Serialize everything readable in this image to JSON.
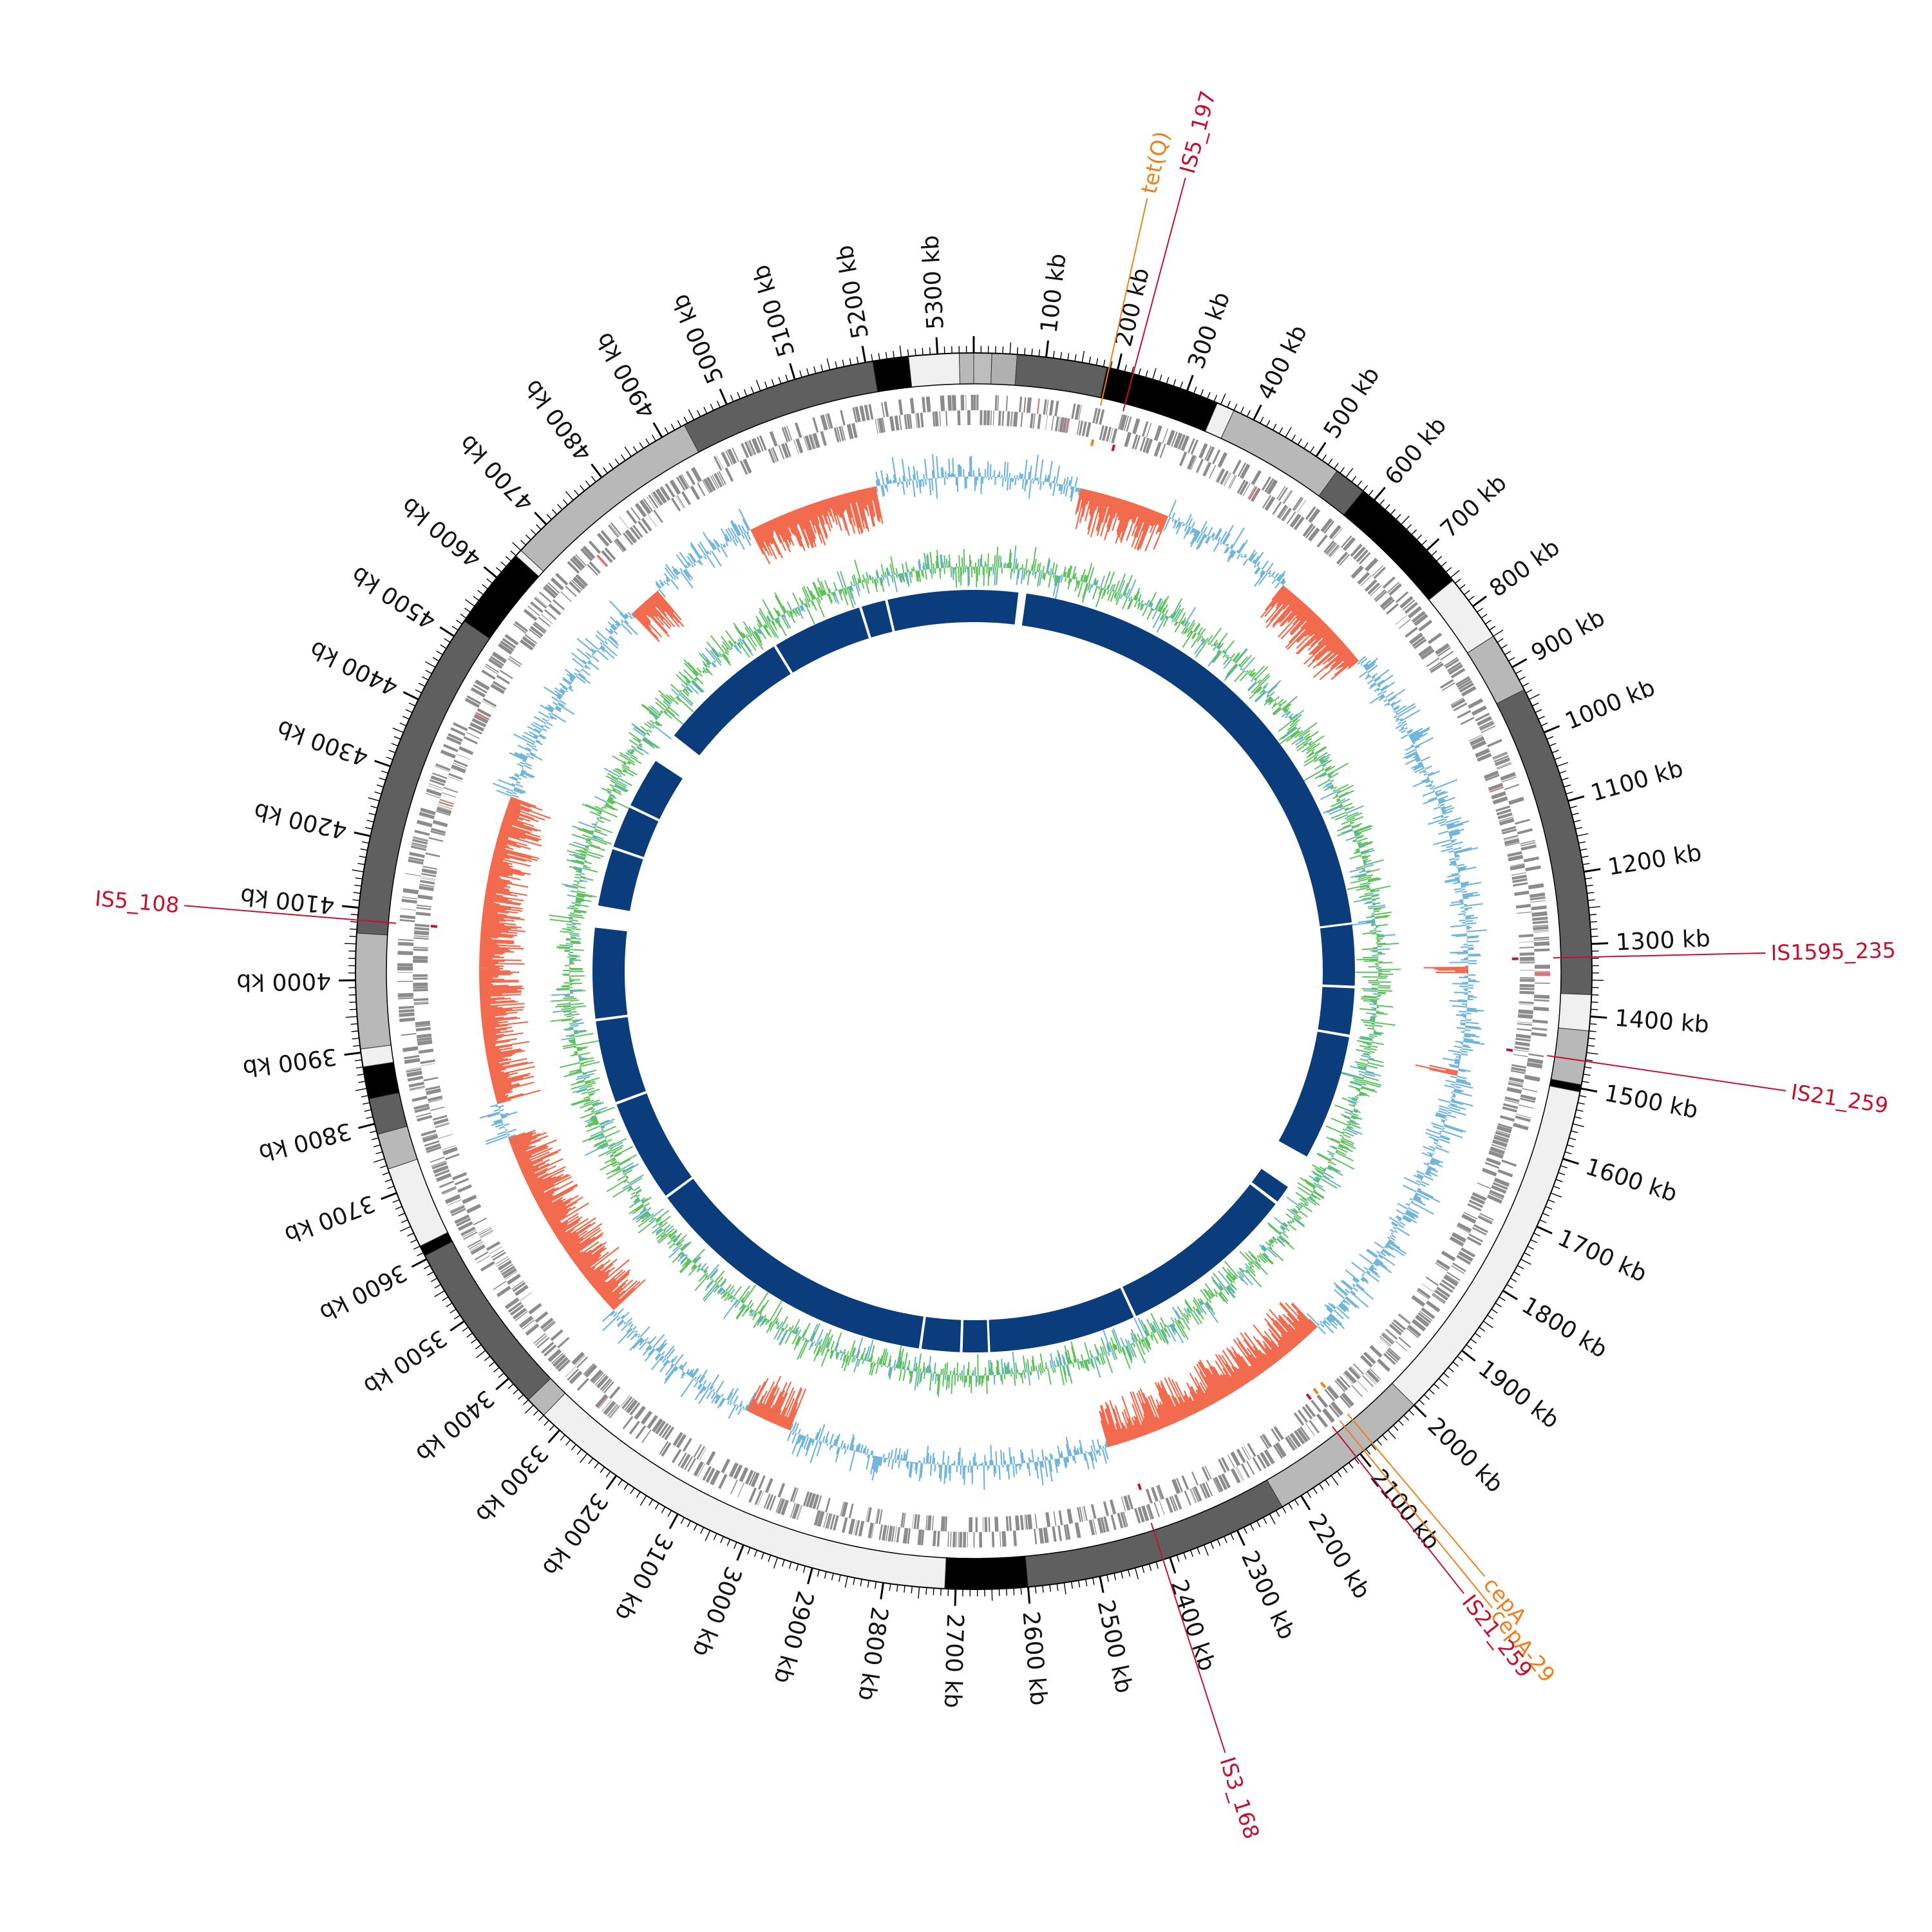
{
  "genome": {
    "length_kb": 5350,
    "tick_unit": "kb",
    "tick_step_kb": 100,
    "minor_tick_step_kb": 10
  },
  "colors": {
    "outline": "#000000",
    "cds": "#8c8c8c",
    "rna": "#e07070",
    "gc_content": "#5aa9d6",
    "gc_skew_negative": "#f26b4f",
    "gc_skew_positive": "#5aa9d6",
    "coverage": "#5ec25e",
    "alignment": "#0b3d7c",
    "is_element": "#c8102e",
    "resistance_gene": "#ef7f1a"
  },
  "contig_blocks": [
    {
      "start": 0,
      "end": 25,
      "shade": "#bdbdbd"
    },
    {
      "start": 25,
      "end": 60,
      "shade": "#b0b0b0"
    },
    {
      "start": 60,
      "end": 185,
      "shade": "#5f5f5f"
    },
    {
      "start": 185,
      "end": 345,
      "shade": "#000000"
    },
    {
      "start": 345,
      "end": 370,
      "shade": "#f0f0f0"
    },
    {
      "start": 370,
      "end": 535,
      "shade": "#b8b8b8"
    },
    {
      "start": 535,
      "end": 580,
      "shade": "#5f5f5f"
    },
    {
      "start": 580,
      "end": 755,
      "shade": "#000000"
    },
    {
      "start": 755,
      "end": 850,
      "shade": "#f0f0f0"
    },
    {
      "start": 850,
      "end": 935,
      "shade": "#b8b8b8"
    },
    {
      "start": 935,
      "end": 1370,
      "shade": "#5f5f5f"
    },
    {
      "start": 1370,
      "end": 1420,
      "shade": "#f0f0f0"
    },
    {
      "start": 1420,
      "end": 1495,
      "shade": "#b8b8b8"
    },
    {
      "start": 1495,
      "end": 1505,
      "shade": "#000000"
    },
    {
      "start": 1505,
      "end": 2000,
      "shade": "#f0f0f0"
    },
    {
      "start": 2000,
      "end": 2230,
      "shade": "#b8b8b8"
    },
    {
      "start": 2230,
      "end": 2600,
      "shade": "#5f5f5f"
    },
    {
      "start": 2600,
      "end": 2715,
      "shade": "#000000"
    },
    {
      "start": 2715,
      "end": 3330,
      "shade": "#f0f0f0"
    },
    {
      "start": 3330,
      "end": 3360,
      "shade": "#b8b8b8"
    },
    {
      "start": 3360,
      "end": 3605,
      "shade": "#5f5f5f"
    },
    {
      "start": 3605,
      "end": 3620,
      "shade": "#000000"
    },
    {
      "start": 3620,
      "end": 3735,
      "shade": "#f0f0f0"
    },
    {
      "start": 3735,
      "end": 3785,
      "shade": "#b8b8b8"
    },
    {
      "start": 3785,
      "end": 3835,
      "shade": "#5f5f5f"
    },
    {
      "start": 3835,
      "end": 3880,
      "shade": "#000000"
    },
    {
      "start": 3880,
      "end": 3905,
      "shade": "#f0f0f0"
    },
    {
      "start": 3905,
      "end": 4065,
      "shade": "#b8b8b8"
    },
    {
      "start": 4065,
      "end": 4525,
      "shade": "#5f5f5f"
    },
    {
      "start": 4525,
      "end": 4640,
      "shade": "#000000"
    },
    {
      "start": 4640,
      "end": 4650,
      "shade": "#f0f0f0"
    },
    {
      "start": 4650,
      "end": 4935,
      "shade": "#b8b8b8"
    },
    {
      "start": 4935,
      "end": 5210,
      "shade": "#5f5f5f"
    },
    {
      "start": 5210,
      "end": 5260,
      "shade": "#000000"
    },
    {
      "start": 5260,
      "end": 5330,
      "shade": "#f0f0f0"
    },
    {
      "start": 5330,
      "end": 5350,
      "shade": "#b8b8b8"
    }
  ],
  "alignment_gaps": [
    {
      "start": 100,
      "end": 118
    },
    {
      "start": 1228,
      "end": 1233
    },
    {
      "start": 1370,
      "end": 1376
    },
    {
      "start": 1480,
      "end": 1486
    },
    {
      "start": 1770,
      "end": 1850
    },
    {
      "start": 1890,
      "end": 1897
    },
    {
      "start": 2300,
      "end": 2306
    },
    {
      "start": 2638,
      "end": 2643
    },
    {
      "start": 2700,
      "end": 2706
    },
    {
      "start": 2792,
      "end": 2798
    },
    {
      "start": 3470,
      "end": 3476
    },
    {
      "start": 3708,
      "end": 3714
    },
    {
      "start": 3900,
      "end": 3906
    },
    {
      "start": 4110,
      "end": 4160
    },
    {
      "start": 4290,
      "end": 4296
    },
    {
      "start": 4390,
      "end": 4396
    },
    {
      "start": 4510,
      "end": 4580
    },
    {
      "start": 4880,
      "end": 4886
    },
    {
      "start": 5090,
      "end": 5096
    },
    {
      "start": 5150,
      "end": 5156
    }
  ],
  "annotations": [
    {
      "label": "tet(Q)",
      "type": "resistance",
      "position_kb": 188
    },
    {
      "label": "IS5_197",
      "type": "is",
      "position_kb": 222
    },
    {
      "label": "IS1595_235",
      "type": "is",
      "position_kb": 1318
    },
    {
      "label": "IS21_259",
      "type": "is",
      "position_kb": 1462
    },
    {
      "label": "cepA",
      "type": "resistance",
      "position_kb": 2078
    },
    {
      "label": "cepA-29",
      "type": "resistance",
      "position_kb": 2093
    },
    {
      "label": "IS21_259",
      "type": "is",
      "position_kb": 2107
    },
    {
      "label": "IS3_168",
      "type": "is",
      "position_kb": 2410
    },
    {
      "label": "IS5_108",
      "type": "is",
      "position_kb": 4083
    }
  ]
}
